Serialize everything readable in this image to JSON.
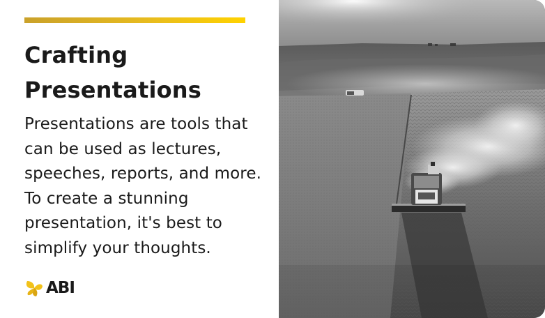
{
  "card": {
    "title": "Crafting Presentations",
    "body": "Presentations are tools that can be used as lectures, speeches, reports, and more. To create a stunning presentation, it's best to simplify your thoughts.",
    "accent_color": "#e7bb1f",
    "text_color": "#1a1a1a"
  },
  "logo": {
    "text": "ABI",
    "icon": "abi-leaf-logo",
    "colors": [
      "#f2c21a",
      "#d9a514"
    ]
  },
  "photo": {
    "subject": "grayscale aerial photo of a combine harvester in a wheat field",
    "icon": "harvest-photo"
  }
}
